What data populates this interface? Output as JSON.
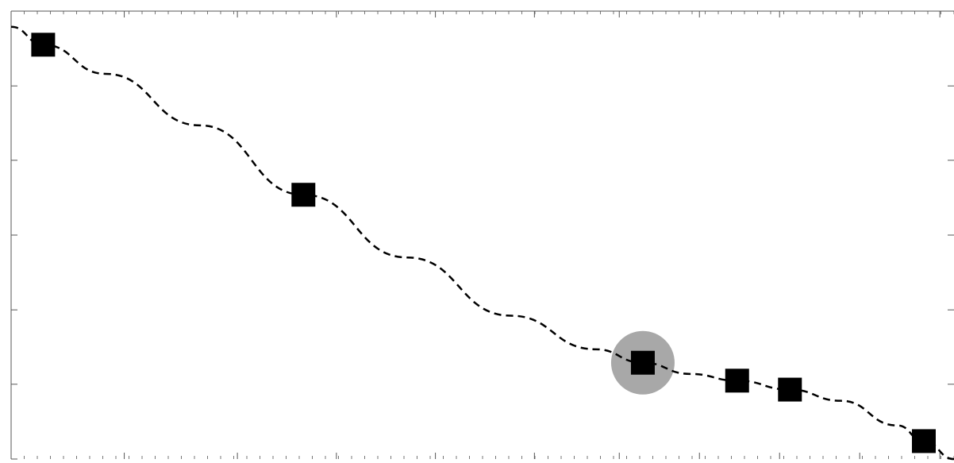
{
  "chart_data": {
    "type": "scatter",
    "title": "",
    "xlabel": "",
    "ylabel": "",
    "xlim": [
      0,
      1
    ],
    "ylim": [
      0,
      1
    ],
    "grid": false,
    "series": [
      {
        "style": "markers",
        "marker": "square",
        "points": [
          {
            "x": 0.034,
            "y": 0.925
          },
          {
            "x": 0.31,
            "y": 0.59
          },
          {
            "x": 0.67,
            "y": 0.215
          },
          {
            "x": 0.77,
            "y": 0.175
          },
          {
            "x": 0.826,
            "y": 0.155
          },
          {
            "x": 0.968,
            "y": 0.04
          }
        ]
      },
      {
        "style": "dashed-curve",
        "points": [
          {
            "x": 0.0,
            "y": 0.965
          },
          {
            "x": 0.034,
            "y": 0.925
          },
          {
            "x": 0.1,
            "y": 0.86
          },
          {
            "x": 0.2,
            "y": 0.745
          },
          {
            "x": 0.31,
            "y": 0.59
          },
          {
            "x": 0.42,
            "y": 0.45
          },
          {
            "x": 0.53,
            "y": 0.32
          },
          {
            "x": 0.62,
            "y": 0.245
          },
          {
            "x": 0.67,
            "y": 0.215
          },
          {
            "x": 0.72,
            "y": 0.19
          },
          {
            "x": 0.77,
            "y": 0.175
          },
          {
            "x": 0.826,
            "y": 0.155
          },
          {
            "x": 0.88,
            "y": 0.13
          },
          {
            "x": 0.94,
            "y": 0.075
          },
          {
            "x": 0.968,
            "y": 0.04
          },
          {
            "x": 1.0,
            "y": 0.0
          }
        ]
      }
    ],
    "highlight": {
      "x": 0.67,
      "y": 0.215
    },
    "colors": {
      "markers": "#000000",
      "curve": "#000000",
      "highlight": "#a8a8a8",
      "axes": "#555555"
    },
    "x_major_ticks": [
      0.0,
      0.12,
      0.24,
      0.345,
      0.45,
      0.555,
      0.645,
      0.73,
      0.815,
      0.9,
      0.985
    ],
    "x_minor_tick_count": 72,
    "y_ticks": [
      0.0,
      0.167,
      0.333,
      0.5,
      0.667,
      0.833,
      1.0
    ]
  }
}
